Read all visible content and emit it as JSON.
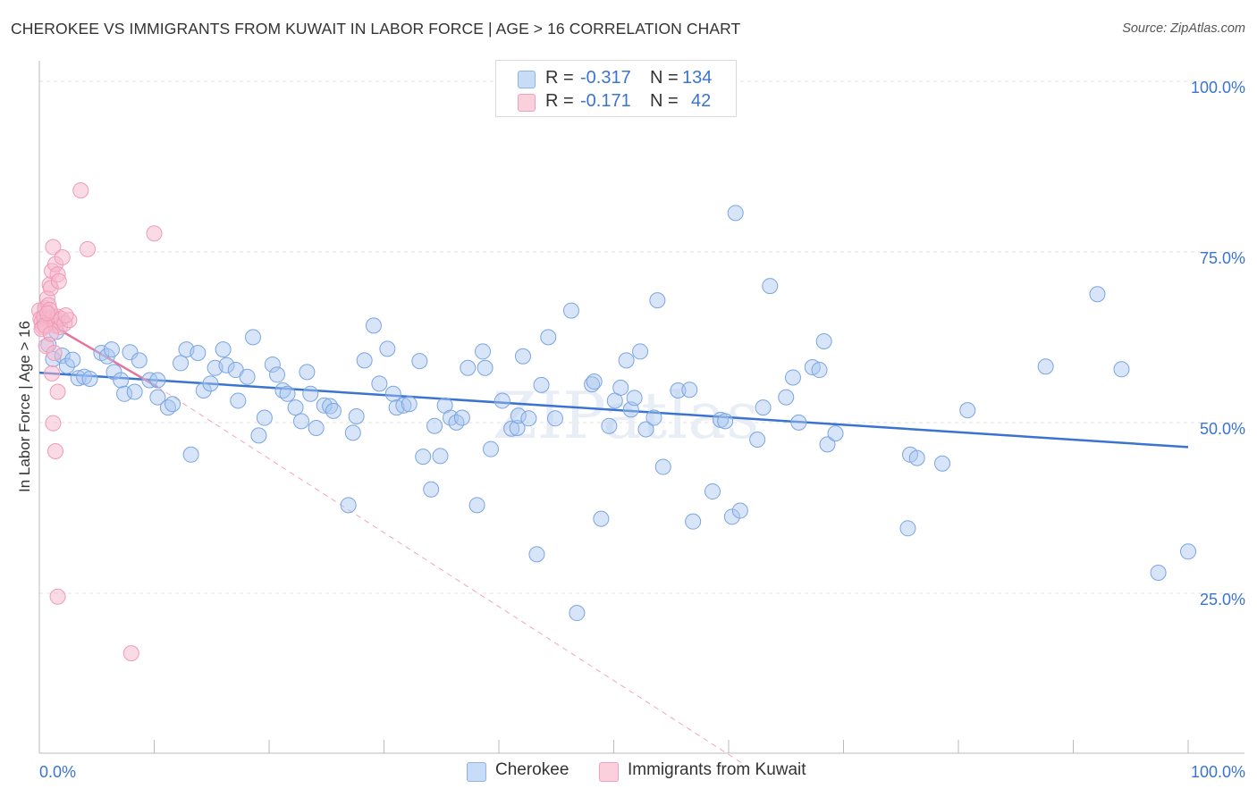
{
  "header": {
    "title": "CHEROKEE VS IMMIGRANTS FROM KUWAIT IN LABOR FORCE | AGE > 16 CORRELATION CHART",
    "source": "Source: ZipAtlas.com"
  },
  "legend_top": {
    "rows": [
      {
        "r_label": "R =",
        "r_value": "-0.317",
        "n_label": "N =",
        "n_value": "134",
        "color": "#a9c6ef"
      },
      {
        "r_label": "R =",
        "r_value": "-0.171",
        "n_label": "N =",
        "n_value": "42",
        "color": "#f6b8cb"
      }
    ]
  },
  "legend_bottom": {
    "items": [
      {
        "label": "Cherokee",
        "color": "#a9c6ef"
      },
      {
        "label": "Immigrants from Kuwait",
        "color": "#f6b8cb"
      }
    ]
  },
  "watermark": "ZIPatlas",
  "chart_data": {
    "type": "scatter",
    "title": "CHEROKEE VS IMMIGRANTS FROM KUWAIT IN LABOR FORCE | AGE > 16 CORRELATION CHART",
    "xlabel": "",
    "ylabel": "In Labor Force | Age > 16",
    "xlim": [
      0,
      100
    ],
    "ylim": [
      0,
      100
    ],
    "x_tick_labels": [
      "0.0%",
      "100.0%"
    ],
    "y_tick_labels": [
      "100.0%",
      "75.0%",
      "50.0%",
      "25.0%"
    ],
    "y_ticks": [
      100,
      75,
      50,
      25
    ],
    "grid": true,
    "colors": {
      "cherokee": "#3a74d0",
      "kuwait": "#e8739b",
      "cherokee_fill": "#a9c6ef",
      "kuwait_fill": "#f6b8cb",
      "axis_text": "#3a74d0"
    },
    "series": [
      {
        "name": "Cherokee",
        "trend": {
          "x": [
            0,
            100
          ],
          "y": [
            58.1,
            47.2
          ]
        },
        "points": [
          [
            0.8,
            62.2
          ],
          [
            1.2,
            60.1
          ],
          [
            1.5,
            64.1
          ],
          [
            2.0,
            60.6
          ],
          [
            2.4,
            59.1
          ],
          [
            2.9,
            60.0
          ],
          [
            3.4,
            57.3
          ],
          [
            3.9,
            57.5
          ],
          [
            4.4,
            57.2
          ],
          [
            5.4,
            61.0
          ],
          [
            5.9,
            60.5
          ],
          [
            6.3,
            61.5
          ],
          [
            6.5,
            58.2
          ],
          [
            7.1,
            57.0
          ],
          [
            7.4,
            55.0
          ],
          [
            7.9,
            61.1
          ],
          [
            8.3,
            55.3
          ],
          [
            8.7,
            59.9
          ],
          [
            9.6,
            57.0
          ],
          [
            10.3,
            54.5
          ],
          [
            10.3,
            57.0
          ],
          [
            11.2,
            53.0
          ],
          [
            11.6,
            53.5
          ],
          [
            12.3,
            59.5
          ],
          [
            12.8,
            61.5
          ],
          [
            13.2,
            46.1
          ],
          [
            13.8,
            61.0
          ],
          [
            14.3,
            55.5
          ],
          [
            14.9,
            56.5
          ],
          [
            15.3,
            58.8
          ],
          [
            16.0,
            61.5
          ],
          [
            16.3,
            59.2
          ],
          [
            17.1,
            58.5
          ],
          [
            17.3,
            54.0
          ],
          [
            18.1,
            57.5
          ],
          [
            18.6,
            63.3
          ],
          [
            19.1,
            48.9
          ],
          [
            19.6,
            51.5
          ],
          [
            20.3,
            59.3
          ],
          [
            20.7,
            57.8
          ],
          [
            21.2,
            55.5
          ],
          [
            21.6,
            55.0
          ],
          [
            22.3,
            53.0
          ],
          [
            22.8,
            51.0
          ],
          [
            23.3,
            58.2
          ],
          [
            23.6,
            55.0
          ],
          [
            24.1,
            50.0
          ],
          [
            24.8,
            53.3
          ],
          [
            25.3,
            53.2
          ],
          [
            25.6,
            52.5
          ],
          [
            26.9,
            38.7
          ],
          [
            27.3,
            49.3
          ],
          [
            27.6,
            51.7
          ],
          [
            28.3,
            59.9
          ],
          [
            29.1,
            65.0
          ],
          [
            29.6,
            56.5
          ],
          [
            30.3,
            61.6
          ],
          [
            30.8,
            55.0
          ],
          [
            31.1,
            53.0
          ],
          [
            31.7,
            53.3
          ],
          [
            32.2,
            53.5
          ],
          [
            33.1,
            59.8
          ],
          [
            33.4,
            45.8
          ],
          [
            34.1,
            41.0
          ],
          [
            34.4,
            50.3
          ],
          [
            34.9,
            45.9
          ],
          [
            35.3,
            53.3
          ],
          [
            35.8,
            51.5
          ],
          [
            36.3,
            50.8
          ],
          [
            36.8,
            51.5
          ],
          [
            37.3,
            58.8
          ],
          [
            38.1,
            38.7
          ],
          [
            38.6,
            61.2
          ],
          [
            38.8,
            58.8
          ],
          [
            39.3,
            46.9
          ],
          [
            40.3,
            54.0
          ],
          [
            41.1,
            49.9
          ],
          [
            41.6,
            50.0
          ],
          [
            41.7,
            51.8
          ],
          [
            42.1,
            60.5
          ],
          [
            42.6,
            51.4
          ],
          [
            43.3,
            31.5
          ],
          [
            43.7,
            56.3
          ],
          [
            44.3,
            63.3
          ],
          [
            44.9,
            51.4
          ],
          [
            46.3,
            67.2
          ],
          [
            46.8,
            22.9
          ],
          [
            48.1,
            56.4
          ],
          [
            48.3,
            56.8
          ],
          [
            48.9,
            36.7
          ],
          [
            49.6,
            50.3
          ],
          [
            50.1,
            54.0
          ],
          [
            50.6,
            55.9
          ],
          [
            51.1,
            59.9
          ],
          [
            51.5,
            52.7
          ],
          [
            51.8,
            54.4
          ],
          [
            52.3,
            61.2
          ],
          [
            52.8,
            49.8
          ],
          [
            53.5,
            51.5
          ],
          [
            53.8,
            68.7
          ],
          [
            54.3,
            44.3
          ],
          [
            55.6,
            55.5
          ],
          [
            56.6,
            55.6
          ],
          [
            56.9,
            36.3
          ],
          [
            58.6,
            40.7
          ],
          [
            59.3,
            51.2
          ],
          [
            59.7,
            51.0
          ],
          [
            60.3,
            37.0
          ],
          [
            60.6,
            81.5
          ],
          [
            61.0,
            37.9
          ],
          [
            62.5,
            48.3
          ],
          [
            63.0,
            53.0
          ],
          [
            63.6,
            70.8
          ],
          [
            65.0,
            54.5
          ],
          [
            65.6,
            57.4
          ],
          [
            66.1,
            50.8
          ],
          [
            67.3,
            58.9
          ],
          [
            67.9,
            58.5
          ],
          [
            68.3,
            62.7
          ],
          [
            68.6,
            47.6
          ],
          [
            69.3,
            49.2
          ],
          [
            75.6,
            35.3
          ],
          [
            75.8,
            46.1
          ],
          [
            76.4,
            45.6
          ],
          [
            78.6,
            44.8
          ],
          [
            80.8,
            52.6
          ],
          [
            87.6,
            59.0
          ],
          [
            92.1,
            69.6
          ],
          [
            94.2,
            58.6
          ],
          [
            97.4,
            28.8
          ],
          [
            100,
            31.9
          ]
        ]
      },
      {
        "name": "Immigrants from Kuwait",
        "trend": {
          "x": [
            0,
            10.3
          ],
          "y": [
            66.1,
            56.0
          ]
        },
        "trend_extended": {
          "x": [
            10.3,
            62.0
          ],
          "y": [
            56.0,
            0
          ]
        },
        "points": [
          [
            0.0,
            67.2
          ],
          [
            0.1,
            66.0
          ],
          [
            0.2,
            65.5
          ],
          [
            0.3,
            64.8
          ],
          [
            0.4,
            66.3
          ],
          [
            0.5,
            67.5
          ],
          [
            0.6,
            62.0
          ],
          [
            0.7,
            69.0
          ],
          [
            0.8,
            68.0
          ],
          [
            0.9,
            71.0
          ],
          [
            1.0,
            70.5
          ],
          [
            1.1,
            73.0
          ],
          [
            1.2,
            76.5
          ],
          [
            1.2,
            66.3
          ],
          [
            1.3,
            65.5
          ],
          [
            1.4,
            74.0
          ],
          [
            1.5,
            65.8
          ],
          [
            1.6,
            72.5
          ],
          [
            1.1,
            58.0
          ],
          [
            1.3,
            61.0
          ],
          [
            1.4,
            65.0
          ],
          [
            1.6,
            66.3
          ],
          [
            1.7,
            71.5
          ],
          [
            1.8,
            64.8
          ],
          [
            1.9,
            66.0
          ],
          [
            2.0,
            75.0
          ],
          [
            1.6,
            55.3
          ],
          [
            1.2,
            50.7
          ],
          [
            1.4,
            46.6
          ],
          [
            1.6,
            25.3
          ],
          [
            2.2,
            65.3
          ],
          [
            2.6,
            65.8
          ],
          [
            3.6,
            84.8
          ],
          [
            4.2,
            76.2
          ],
          [
            10.0,
            78.5
          ],
          [
            8.0,
            17.0
          ],
          [
            0.2,
            64.5
          ],
          [
            0.5,
            65.0
          ],
          [
            0.9,
            67.3
          ],
          [
            2.3,
            66.5
          ],
          [
            0.7,
            66.8
          ],
          [
            1.0,
            63.8
          ]
        ]
      }
    ]
  }
}
